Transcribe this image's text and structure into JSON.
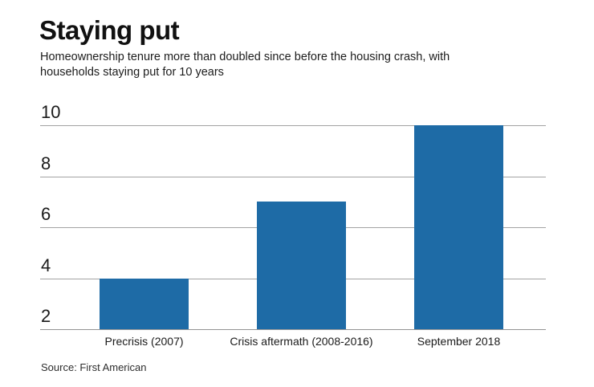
{
  "header": {
    "title": "Staying put",
    "subtitle_line1": "Homeownership tenure more than doubled since before the housing crash, with",
    "subtitle_line2": "households staying put for 10 years"
  },
  "chart_data": {
    "type": "bar",
    "title": "Staying put",
    "categories": [
      "Precrisis (2007)",
      "Crisis aftermath (2008-2016)",
      "September 2018"
    ],
    "values": [
      4,
      7,
      10
    ],
    "xlabel": "",
    "ylabel": "",
    "y_ticks": [
      2,
      4,
      6,
      8,
      10
    ],
    "ylim": [
      2,
      10
    ],
    "grid": true,
    "legend_position": "none",
    "bar_color": "#1e6ba6",
    "gridline_color": "#a3a3a3",
    "text_color": "#1a1a1a"
  },
  "footer": {
    "source": "Source: First American"
  }
}
